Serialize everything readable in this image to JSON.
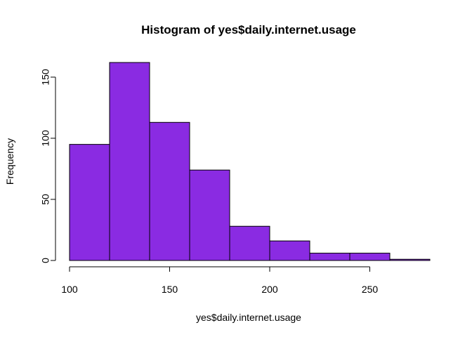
{
  "chart_data": {
    "type": "bar",
    "title": "Histogram of yes$daily.internet.usage",
    "xlabel": "yes$daily.internet.usage",
    "ylabel": "Frequency",
    "bins": [
      {
        "start": 100,
        "end": 120,
        "count": 95
      },
      {
        "start": 120,
        "end": 140,
        "count": 162
      },
      {
        "start": 140,
        "end": 160,
        "count": 113
      },
      {
        "start": 160,
        "end": 180,
        "count": 74
      },
      {
        "start": 180,
        "end": 200,
        "count": 28
      },
      {
        "start": 200,
        "end": 220,
        "count": 16
      },
      {
        "start": 220,
        "end": 240,
        "count": 6
      },
      {
        "start": 240,
        "end": 260,
        "count": 6
      },
      {
        "start": 260,
        "end": 280,
        "count": 1
      }
    ],
    "x_ticks": [
      100,
      150,
      200,
      250
    ],
    "y_ticks": [
      0,
      50,
      100,
      150
    ],
    "xlim": [
      100,
      280
    ],
    "ylim": [
      0,
      162
    ],
    "grid": false,
    "bar_color": "#8a2be2"
  }
}
